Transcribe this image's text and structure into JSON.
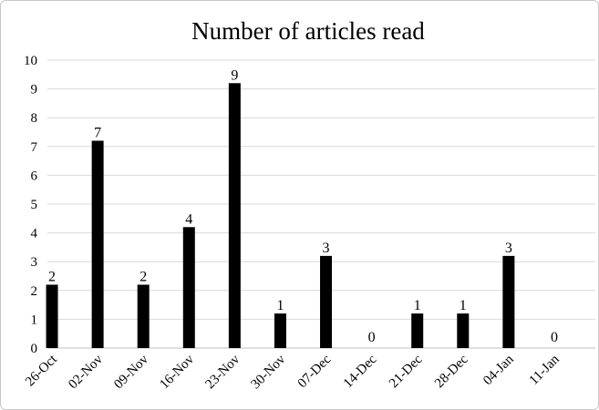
{
  "chart_data": {
    "type": "bar",
    "title": "Number of articles read",
    "xlabel": "",
    "ylabel": "",
    "categories": [
      "26-Oct",
      "02-Nov",
      "09-Nov",
      "16-Nov",
      "23-Nov",
      "30-Nov",
      "07-Dec",
      "14-Dec",
      "21-Dec",
      "28-Dec",
      "04-Jan",
      "11-Jan"
    ],
    "values": [
      2,
      7,
      2,
      4,
      9,
      1,
      3,
      0,
      1,
      1,
      3,
      0
    ],
    "data_labels": [
      "2",
      "7",
      "2",
      "4",
      "9",
      "1",
      "3",
      "0",
      "1",
      "1",
      "3",
      "0"
    ],
    "yticks": [
      "0",
      "1",
      "2",
      "3",
      "4",
      "5",
      "6",
      "7",
      "8",
      "9",
      "10"
    ],
    "ylim": [
      0,
      10
    ],
    "grid": true,
    "legend": "none",
    "bar_color": "#000000",
    "grid_color": "#d9d9d9"
  }
}
